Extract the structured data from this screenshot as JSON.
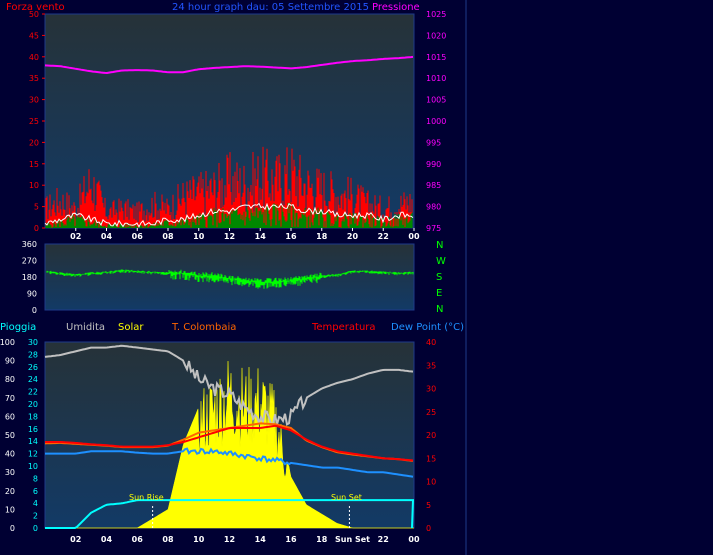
{
  "colors": {
    "page_bg": "#000033",
    "plot_bg_top": "#263238",
    "plot_bg_bottom": "#123a66",
    "frame": "#1e3a8a",
    "wind": "#ff0000",
    "gust_white": "#ffffff",
    "gust_green": "#008800",
    "pressure": "#ff00ff",
    "direction": "#00ff00",
    "rain": "#00ffff",
    "humidity": "#c0c0c0",
    "solar": "#ffff00",
    "colombaia": "#ff6600",
    "temperature": "#ff0000",
    "dew_point": "#1e90ff",
    "title": "#2255ff",
    "tick_white": "#ffffff"
  },
  "header": {
    "left_label": "Forza vento",
    "title": "24 hour graph dau: 05 Settembre 2015",
    "right_label": "Pressione"
  },
  "direction_labels": [
    "N",
    "W",
    "S",
    "E",
    "N"
  ],
  "legend2": {
    "rain": "Pioggia",
    "humidity": "Umidita",
    "solar": "Solar",
    "colombaia": "T. Colombaia",
    "temperature": "Temperatura",
    "dew_point": "Dew Point (°C)"
  },
  "annotations": {
    "sunrise": "Sun Rise",
    "sunset": "Sun Set",
    "sunset_tick": "Sun Set"
  },
  "chart_data": [
    {
      "type": "line",
      "title": "24 hour graph dau: 05 Settembre 2015",
      "x_ticks": [
        "02",
        "04",
        "06",
        "08",
        "10",
        "12",
        "14",
        "16",
        "18",
        "20",
        "22",
        "00"
      ],
      "ylabel_left": "Forza vento",
      "ylim_left": [
        0,
        50
      ],
      "yticks_left": [
        0,
        5,
        10,
        15,
        20,
        25,
        30,
        35,
        40,
        45,
        50
      ],
      "ylabel_right": "Pressione",
      "ylim_right": [
        975,
        1025
      ],
      "yticks_right": [
        975,
        980,
        985,
        990,
        995,
        1000,
        1005,
        1010,
        1015,
        1020,
        1025
      ],
      "series": [
        {
          "name": "Pressione",
          "axis": "right",
          "x": [
            0,
            1,
            2,
            3,
            4,
            5,
            6,
            7,
            8,
            9,
            10,
            11,
            12,
            13,
            14,
            15,
            16,
            17,
            18,
            19,
            20,
            21,
            22,
            23,
            24
          ],
          "values": [
            1013,
            1012.8,
            1012.2,
            1011.6,
            1011.2,
            1011.8,
            1011.9,
            1011.8,
            1011.4,
            1011.4,
            1012.1,
            1012.4,
            1012.6,
            1012.8,
            1012.7,
            1012.5,
            1012.3,
            1012.6,
            1013.1,
            1013.6,
            1014,
            1014.2,
            1014.5,
            1014.7,
            1015
          ]
        },
        {
          "name": "Forza vento",
          "axis": "left",
          "x": [
            0,
            1,
            2,
            3,
            4,
            5,
            6,
            7,
            8,
            9,
            10,
            11,
            12,
            13,
            14,
            15,
            16,
            17,
            18,
            19,
            20,
            21,
            22,
            23,
            24
          ],
          "values": [
            5,
            7,
            5,
            12,
            4,
            5,
            4,
            6,
            5,
            8,
            9,
            10,
            12,
            11,
            13,
            12,
            14,
            11,
            10,
            9,
            8,
            6,
            5,
            6,
            7
          ]
        },
        {
          "name": "Raffica",
          "axis": "left",
          "x": [
            0,
            1,
            2,
            3,
            4,
            5,
            6,
            7,
            8,
            9,
            10,
            11,
            12,
            13,
            14,
            15,
            16,
            17,
            18,
            19,
            20,
            21,
            22,
            23,
            24
          ],
          "values": [
            1,
            2,
            3,
            2,
            1,
            1,
            1,
            1,
            2,
            2,
            3,
            4,
            4,
            5,
            5,
            5,
            5,
            4,
            4,
            3,
            3,
            3,
            2,
            3,
            3
          ]
        }
      ]
    },
    {
      "type": "line",
      "ylim": [
        0,
        360
      ],
      "yticks": [
        0,
        90,
        180,
        270,
        360
      ],
      "series": [
        {
          "name": "Direzione",
          "x": [
            0,
            1,
            2,
            3,
            4,
            5,
            6,
            7,
            8,
            9,
            10,
            11,
            12,
            13,
            14,
            15,
            16,
            17,
            18,
            19,
            20,
            21,
            22,
            23,
            24
          ],
          "values": [
            210,
            200,
            190,
            200,
            205,
            215,
            210,
            205,
            200,
            200,
            185,
            185,
            170,
            160,
            150,
            155,
            160,
            170,
            185,
            190,
            210,
            210,
            205,
            200,
            205
          ]
        }
      ]
    },
    {
      "type": "line",
      "x_ticks": [
        "02",
        "04",
        "06",
        "08",
        "10",
        "12",
        "14",
        "16",
        "18",
        "Sun Set",
        "22",
        "00"
      ],
      "axis_rain": {
        "ylim": [
          0,
          100
        ],
        "yticks": [
          0,
          10,
          20,
          30,
          40,
          50,
          60,
          70,
          80,
          90,
          100
        ]
      },
      "axis_humidity": {
        "ylim": [
          0,
          30
        ],
        "yticks": [
          0,
          2,
          4,
          6,
          8,
          10,
          12,
          14,
          16,
          18,
          20,
          22,
          24,
          26,
          28,
          30
        ]
      },
      "axis_temp": {
        "ylim": [
          0,
          40
        ],
        "yticks": [
          0,
          5,
          10,
          15,
          20,
          25,
          30,
          35,
          40
        ]
      },
      "sunrise_hour": 7,
      "sunset_hour": 19.8,
      "series": [
        {
          "name": "Umidita",
          "axis": "rain",
          "x": [
            0,
            1,
            2,
            3,
            4,
            5,
            6,
            7,
            8,
            9,
            10,
            11,
            12,
            13,
            14,
            15,
            16,
            17,
            18,
            19,
            20,
            21,
            22,
            23,
            24
          ],
          "values": [
            92,
            93,
            95,
            97,
            97,
            98,
            97,
            96,
            95,
            90,
            80,
            75,
            72,
            65,
            60,
            58,
            60,
            70,
            75,
            78,
            80,
            83,
            85,
            85,
            84
          ]
        },
        {
          "name": "Solar",
          "axis": "temp",
          "x": [
            0,
            6,
            7,
            8,
            9,
            10,
            11,
            12,
            13,
            14,
            15,
            16,
            17,
            18,
            19,
            20,
            24
          ],
          "values": [
            0,
            0,
            2,
            4,
            18,
            26,
            29,
            33,
            30,
            31,
            26,
            11,
            5,
            3,
            1,
            0,
            0
          ]
        },
        {
          "name": "Temperatura",
          "axis": "temp",
          "x": [
            0,
            1,
            2,
            3,
            4,
            5,
            6,
            7,
            8,
            9,
            10,
            11,
            12,
            13,
            14,
            15,
            16,
            17,
            18,
            19,
            20,
            21,
            22,
            23,
            24
          ],
          "values": [
            18.5,
            18.5,
            18.3,
            18.0,
            17.8,
            17.5,
            17.5,
            17.5,
            17.8,
            18.5,
            19.5,
            20.5,
            21.5,
            21.5,
            21.5,
            22,
            21,
            19,
            17.5,
            16.5,
            16,
            15.5,
            15,
            14.8,
            14.5
          ]
        },
        {
          "name": "T. Colombaia",
          "axis": "temp",
          "x": [
            0,
            1,
            2,
            3,
            4,
            5,
            6,
            7,
            8,
            9,
            10,
            11,
            12,
            13,
            14,
            15,
            16,
            17,
            18,
            19,
            20,
            21,
            22,
            23,
            24
          ],
          "values": [
            18.2,
            18.3,
            18.1,
            17.9,
            17.7,
            17.4,
            17.4,
            17.4,
            17.7,
            19.0,
            20.5,
            21.0,
            21.5,
            22.0,
            22.5,
            22.3,
            21.5,
            18.8,
            17.4,
            16.3,
            15.8,
            15.4,
            15,
            14.8,
            14.4
          ]
        },
        {
          "name": "Dew Point (°C)",
          "axis": "temp",
          "x": [
            0,
            1,
            2,
            3,
            4,
            5,
            6,
            7,
            8,
            9,
            10,
            11,
            12,
            13,
            14,
            15,
            16,
            17,
            18,
            19,
            20,
            21,
            22,
            23,
            24
          ],
          "values": [
            16,
            16,
            16,
            16.5,
            16.5,
            16.5,
            16.2,
            16.0,
            16,
            16.5,
            16.5,
            16.5,
            16,
            15.5,
            15,
            14.5,
            14,
            13.5,
            13,
            13,
            12.5,
            12,
            12,
            11.5,
            11
          ]
        },
        {
          "name": "Pioggia",
          "axis": "temp",
          "x": [
            0,
            1,
            2,
            3,
            4,
            5,
            6,
            7,
            8,
            9,
            10,
            11,
            12,
            13,
            14,
            15,
            16,
            17,
            18,
            19,
            20,
            21,
            22,
            23,
            24
          ],
          "values": [
            0,
            0,
            0,
            3.3,
            5,
            5.3,
            6,
            6,
            6,
            6,
            6,
            6,
            6,
            6,
            6,
            6,
            6,
            6,
            6,
            6,
            6,
            6,
            6,
            6,
            6
          ]
        }
      ]
    }
  ]
}
